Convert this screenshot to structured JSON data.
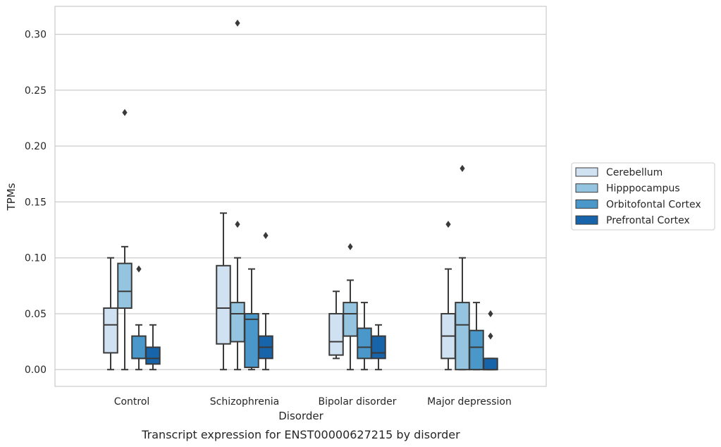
{
  "chart_data": {
    "type": "box",
    "title": "",
    "caption": "Transcript expression for ENST00000627215 by disorder",
    "xlabel": "Disorder",
    "ylabel": "TPMs",
    "ylim": [
      -0.015,
      0.325
    ],
    "yticks": [
      "0.00",
      "0.05",
      "0.10",
      "0.15",
      "0.20",
      "0.25",
      "0.30"
    ],
    "grid": "horizontal",
    "legend_position": "right",
    "categories": [
      "Control",
      "Schizophrenia",
      "Bipolar disorder",
      "Major depression"
    ],
    "series": [
      {
        "name": "Cerebellum",
        "color": "#d0e1f2",
        "boxes": [
          {
            "whisker_low": 0.0,
            "q1": 0.015,
            "median": 0.04,
            "q3": 0.055,
            "whisker_high": 0.1,
            "outliers": []
          },
          {
            "whisker_low": 0.0,
            "q1": 0.023,
            "median": 0.055,
            "q3": 0.093,
            "whisker_high": 0.14,
            "outliers": []
          },
          {
            "whisker_low": 0.01,
            "q1": 0.013,
            "median": 0.025,
            "q3": 0.05,
            "whisker_high": 0.07,
            "outliers": []
          },
          {
            "whisker_low": 0.0,
            "q1": 0.01,
            "median": 0.03,
            "q3": 0.05,
            "whisker_high": 0.09,
            "outliers": [
              0.13
            ]
          }
        ]
      },
      {
        "name": "Hipppocampus",
        "color": "#94c4df",
        "boxes": [
          {
            "whisker_low": 0.0,
            "q1": 0.055,
            "median": 0.07,
            "q3": 0.095,
            "whisker_high": 0.11,
            "outliers": [
              0.23
            ]
          },
          {
            "whisker_low": 0.0,
            "q1": 0.025,
            "median": 0.05,
            "q3": 0.06,
            "whisker_high": 0.1,
            "outliers": [
              0.13,
              0.31
            ]
          },
          {
            "whisker_low": 0.0,
            "q1": 0.03,
            "median": 0.05,
            "q3": 0.06,
            "whisker_high": 0.08,
            "outliers": [
              0.11
            ]
          },
          {
            "whisker_low": 0.0,
            "q1": 0.0,
            "median": 0.04,
            "q3": 0.06,
            "whisker_high": 0.1,
            "outliers": [
              0.18
            ]
          }
        ]
      },
      {
        "name": "Orbitofontal Cortex",
        "color": "#4a98c9",
        "boxes": [
          {
            "whisker_low": 0.0,
            "q1": 0.01,
            "median": 0.01,
            "q3": 0.03,
            "whisker_high": 0.04,
            "outliers": [
              0.09
            ]
          },
          {
            "whisker_low": 0.0,
            "q1": 0.002,
            "median": 0.045,
            "q3": 0.05,
            "whisker_high": 0.09,
            "outliers": []
          },
          {
            "whisker_low": 0.0,
            "q1": 0.01,
            "median": 0.02,
            "q3": 0.037,
            "whisker_high": 0.06,
            "outliers": []
          },
          {
            "whisker_low": 0.0,
            "q1": 0.0,
            "median": 0.02,
            "q3": 0.035,
            "whisker_high": 0.06,
            "outliers": []
          }
        ]
      },
      {
        "name": "Prefrontal Cortex",
        "color": "#1764ab",
        "boxes": [
          {
            "whisker_low": 0.0,
            "q1": 0.005,
            "median": 0.01,
            "q3": 0.02,
            "whisker_high": 0.04,
            "outliers": []
          },
          {
            "whisker_low": 0.0,
            "q1": 0.01,
            "median": 0.02,
            "q3": 0.03,
            "whisker_high": 0.05,
            "outliers": [
              0.12
            ]
          },
          {
            "whisker_low": 0.0,
            "q1": 0.01,
            "median": 0.015,
            "q3": 0.03,
            "whisker_high": 0.04,
            "outliers": []
          },
          {
            "whisker_low": 0.0,
            "q1": 0.0,
            "median": 0.0,
            "q3": 0.01,
            "whisker_high": 0.01,
            "outliers": [
              0.03,
              0.05
            ]
          }
        ]
      }
    ]
  }
}
